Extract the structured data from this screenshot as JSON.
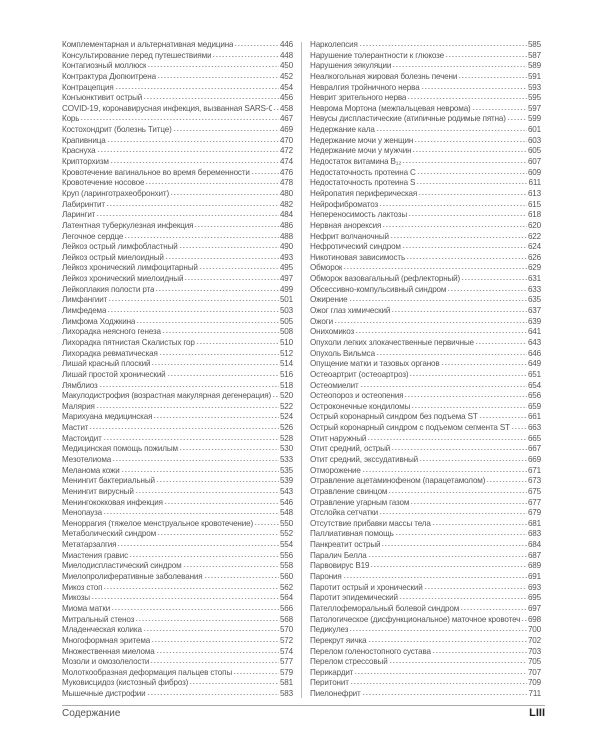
{
  "left_column": [
    {
      "name": "Комплементарная и альтернативная медицина",
      "page": "446"
    },
    {
      "name": "Консультирование перед путешествиями",
      "page": "448"
    },
    {
      "name": "Контагиозный моллюск",
      "page": "450"
    },
    {
      "name": "Контрактура Дюпюитрена",
      "page": "452"
    },
    {
      "name": "Контрацепция",
      "page": "454"
    },
    {
      "name": "Конъюнктивит острый",
      "page": "456"
    },
    {
      "name": "COVID-19, коронавирусная инфекция, вызванная SARS-CoV-2",
      "page": "458"
    },
    {
      "name": "Корь",
      "page": "467"
    },
    {
      "name": "Костохондрит (болезнь Титце)",
      "page": "469"
    },
    {
      "name": "Крапивница",
      "page": "470"
    },
    {
      "name": "Краснуха",
      "page": "472"
    },
    {
      "name": "Крипторхизм",
      "page": "474"
    },
    {
      "name": "Кровотечение вагинальное во время беременности",
      "page": "476"
    },
    {
      "name": "Кровотечение носовое",
      "page": "478"
    },
    {
      "name": "Круп (ларинготрахеобронхит)",
      "page": "480"
    },
    {
      "name": "Лабиринтит",
      "page": "482"
    },
    {
      "name": "Ларингит",
      "page": "484"
    },
    {
      "name": "Латентная туберкулезная инфекция",
      "page": "486"
    },
    {
      "name": "Легочное сердце",
      "page": "488"
    },
    {
      "name": "Лейкоз острый лимфобластный",
      "page": "490"
    },
    {
      "name": "Лейкоз острый миелоидный",
      "page": "493"
    },
    {
      "name": "Лейкоз хронический лимфоцитарный",
      "page": "495"
    },
    {
      "name": "Лейкоз хронический миелоидный",
      "page": "497"
    },
    {
      "name": "Лейкоплакия полости рта",
      "page": "499"
    },
    {
      "name": "Лимфангиит",
      "page": "501"
    },
    {
      "name": "Лимфедема",
      "page": "503"
    },
    {
      "name": "Лимфома Ходжкина",
      "page": "505"
    },
    {
      "name": "Лихорадка неясного генеза",
      "page": "508"
    },
    {
      "name": "Лихорадка пятнистая Скалистых гор",
      "page": "510"
    },
    {
      "name": "Лихорадка ревматическая",
      "page": "512"
    },
    {
      "name": "Лишай красный плоский",
      "page": "514"
    },
    {
      "name": "Лишай простой хронический",
      "page": "516"
    },
    {
      "name": "Лямблиоз",
      "page": "518"
    },
    {
      "name": "Макулодистрофия (возрастная макулярная дегенерация)",
      "page": "520"
    },
    {
      "name": "Малярия",
      "page": "522"
    },
    {
      "name": "Марихуана медицинская",
      "page": "524"
    },
    {
      "name": "Мастит",
      "page": "526"
    },
    {
      "name": "Мастоидит",
      "page": "528"
    },
    {
      "name": "Медицинская помощь пожилым",
      "page": "530"
    },
    {
      "name": "Мезотелиома",
      "page": "533"
    },
    {
      "name": "Меланома кожи",
      "page": "535"
    },
    {
      "name": "Менингит бактериальный",
      "page": "539"
    },
    {
      "name": "Менингит вирусный",
      "page": "543"
    },
    {
      "name": "Менингококковая инфекция",
      "page": "546"
    },
    {
      "name": "Менопауза",
      "page": "548"
    },
    {
      "name": "Меноррагия (тяжелое менструальное кровотечение)",
      "page": "550"
    },
    {
      "name": "Метаболический синдром",
      "page": "552"
    },
    {
      "name": "Метатарзалгия",
      "page": "554"
    },
    {
      "name": "Миастения гравис",
      "page": "556"
    },
    {
      "name": "Миелодиспластический синдром",
      "page": "558"
    },
    {
      "name": "Миелопролиферативные заболевания",
      "page": "560"
    },
    {
      "name": "Микоз стоп",
      "page": "562"
    },
    {
      "name": "Микозы",
      "page": "564"
    },
    {
      "name": "Миома матки",
      "page": "566"
    },
    {
      "name": "Митральный стеноз",
      "page": "568"
    },
    {
      "name": "Младенческая колика",
      "page": "570"
    },
    {
      "name": "Многоформная эритема",
      "page": "572"
    },
    {
      "name": "Множественная миелома",
      "page": "574"
    },
    {
      "name": "Мозоли и омозолелости",
      "page": "577"
    },
    {
      "name": "Молоткообразная деформация пальцев стопы",
      "page": "579"
    },
    {
      "name": "Муковисцидоз (кистозный фиброз)",
      "page": "581"
    },
    {
      "name": "Мышечные дистрофии",
      "page": "583"
    }
  ],
  "right_column": [
    {
      "name": "Нарколепсия",
      "page": "585"
    },
    {
      "name": "Нарушение толерантности к глюкозе",
      "page": "587"
    },
    {
      "name": "Нарушения эякуляции",
      "page": "589"
    },
    {
      "name": "Неалкогольная жировая болезнь печени",
      "page": "591"
    },
    {
      "name": "Невралгия тройничного нерва",
      "page": "593"
    },
    {
      "name": "Неврит зрительного нерва",
      "page": "595"
    },
    {
      "name": "Неврома Мортона (межпальцевая неврома)",
      "page": "597"
    },
    {
      "name": "Невусы диспластические (атипичные родимые пятна)",
      "page": "599"
    },
    {
      "name": "Недержание кала",
      "page": "601"
    },
    {
      "name": "Недержание мочи у женщин",
      "page": "603"
    },
    {
      "name": "Недержание мочи у мужчин",
      "page": "605"
    },
    {
      "name": "Недостаток витамина B₁₂",
      "page": "607"
    },
    {
      "name": "Недостаточность протеина C",
      "page": "609"
    },
    {
      "name": "Недостаточность протеина S",
      "page": "611"
    },
    {
      "name": "Нейропатия периферическая",
      "page": "613"
    },
    {
      "name": "Нейрофиброматоз",
      "page": "615"
    },
    {
      "name": "Непереносимость лактозы",
      "page": "618"
    },
    {
      "name": "Нервная анорексия",
      "page": "620"
    },
    {
      "name": "Нефрит волчаночный",
      "page": "622"
    },
    {
      "name": "Нефротический синдром",
      "page": "624"
    },
    {
      "name": "Никотиновая зависимость",
      "page": "626"
    },
    {
      "name": "Обморок",
      "page": "629"
    },
    {
      "name": "Обморок вазовагальный (рефлекторный)",
      "page": "631"
    },
    {
      "name": "Обсессивно-компульсивный синдром",
      "page": "633"
    },
    {
      "name": "Ожирение",
      "page": "635"
    },
    {
      "name": "Ожог глаз химический",
      "page": "637"
    },
    {
      "name": "Ожоги",
      "page": "639"
    },
    {
      "name": "Онихомикоз",
      "page": "641"
    },
    {
      "name": "Опухоли легких злокачественные первичные",
      "page": "643"
    },
    {
      "name": "Опухоль Вильмса",
      "page": "646"
    },
    {
      "name": "Опущение матки и тазовых органов",
      "page": "649"
    },
    {
      "name": "Остеоартрит (остеоартроз)",
      "page": "651"
    },
    {
      "name": "Остеомиелит",
      "page": "654"
    },
    {
      "name": "Остеопороз и остеопения",
      "page": "656"
    },
    {
      "name": "Остроконечные кондиломы",
      "page": "659"
    },
    {
      "name": "Острый коронарный синдром без подъема ST",
      "page": "661"
    },
    {
      "name": "Острый коронарный синдром с подъемом сегмента ST",
      "page": "663"
    },
    {
      "name": "Отит наружный",
      "page": "665"
    },
    {
      "name": "Отит средний, острый",
      "page": "667"
    },
    {
      "name": "Отит средний, экссудативный",
      "page": "669"
    },
    {
      "name": "Отморожение",
      "page": "671"
    },
    {
      "name": "Отравление ацетаминофеном (парацетамолом)",
      "page": "673"
    },
    {
      "name": "Отравление свинцом",
      "page": "675"
    },
    {
      "name": "Отравление угарным газом",
      "page": "677"
    },
    {
      "name": "Отслойка сетчатки",
      "page": "679"
    },
    {
      "name": "Отсутствие прибавки массы тела",
      "page": "681"
    },
    {
      "name": "Паллиативная помощь",
      "page": "683"
    },
    {
      "name": "Панкреатит острый",
      "page": "684"
    },
    {
      "name": "Паралич Белла",
      "page": "687"
    },
    {
      "name": "Парвовирус B19",
      "page": "689"
    },
    {
      "name": "Парония",
      "page": "691"
    },
    {
      "name": "Паротит острый и хронический",
      "page": "693"
    },
    {
      "name": "Паротит эпидемический",
      "page": "695"
    },
    {
      "name": "Пателлофеморальный болевой синдром",
      "page": "697"
    },
    {
      "name": "Патологическое (дисфункциональное) маточное кровотечение",
      "page": "698"
    },
    {
      "name": "Педикулез",
      "page": "700"
    },
    {
      "name": "Перекрут яичка",
      "page": "702"
    },
    {
      "name": "Перелом голеностопного сустава",
      "page": "703"
    },
    {
      "name": "Перелом стрессовый",
      "page": "705"
    },
    {
      "name": "Перикардит",
      "page": "707"
    },
    {
      "name": "Перитонит",
      "page": "709"
    },
    {
      "name": "Пиелонефрит",
      "page": "711"
    }
  ],
  "footer": {
    "section": "Содержание",
    "page_number": "LIII"
  }
}
